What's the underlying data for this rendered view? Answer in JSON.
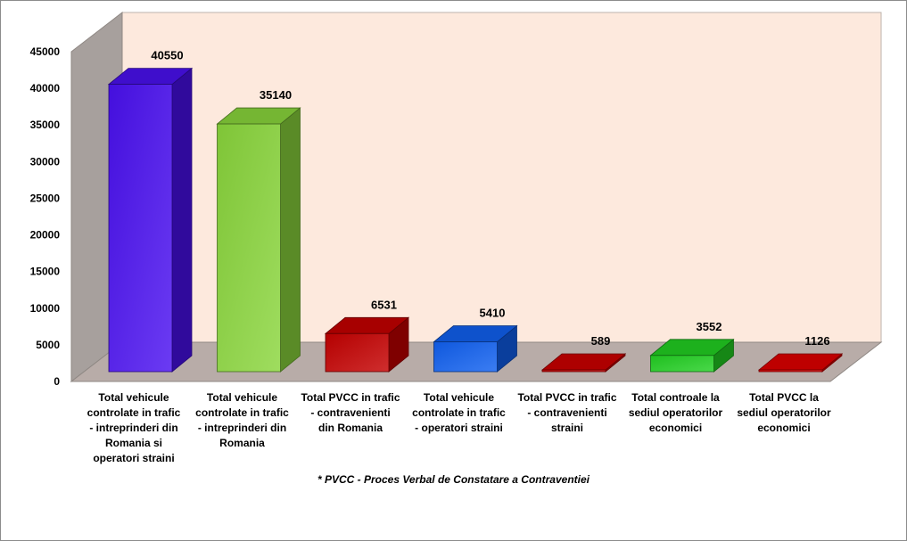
{
  "chart_data": {
    "type": "bar",
    "three_d": true,
    "categories": [
      [
        "Total vehicule",
        "controlate in trafic",
        "- intreprinderi din",
        "Romania si",
        "operatori straini"
      ],
      [
        "Total vehicule",
        "controlate in trafic",
        "- intreprinderi din",
        "Romania"
      ],
      [
        "Total PVCC in trafic",
        "-  contravenienti",
        "din Romania"
      ],
      [
        "Total vehicule",
        "controlate in trafic",
        "- operatori straini"
      ],
      [
        "Total PVCC in trafic",
        "- contravenienti",
        "straini"
      ],
      [
        "Total controale la",
        "sediul operatorilor",
        "economici"
      ],
      [
        "Total PVCC la",
        "sediul operatorilor",
        "economici"
      ]
    ],
    "values": [
      40550,
      35140,
      6531,
      5410,
      589,
      3552,
      1126
    ],
    "data_labels": [
      "40550",
      "35140",
      "6531",
      "5410",
      "589",
      "3552",
      "1126"
    ],
    "bar_colors": [
      "#4a10f0",
      "#8ad63c",
      "#c40000",
      "#1060f0",
      "#cc0000",
      "#22d022",
      "#e00000"
    ],
    "yticks": [
      "0",
      "5000",
      "10000",
      "15000",
      "20000",
      "25000",
      "30000",
      "35000",
      "40000",
      "45000"
    ],
    "ylim": [
      0,
      45000
    ],
    "grid": false,
    "legend": "none",
    "back_wall_color": "#fde9dd",
    "side_wall_color": "#a7a09d",
    "floor_color": "#b8aca8"
  },
  "footnote": "* PVCC -  Proces Verbal de Constatare a Contraventiei"
}
